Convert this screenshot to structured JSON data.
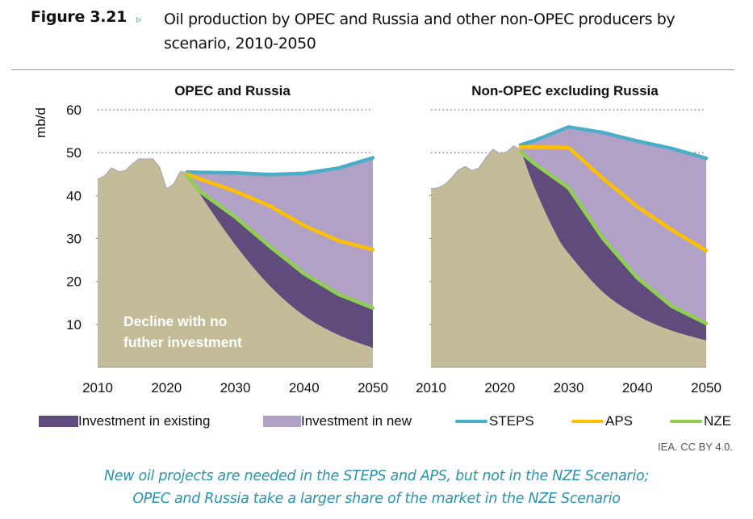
{
  "figure": {
    "label": "Figure 3.21",
    "marker": "▹",
    "title": "Oil production by OPEC and Russia and other non-OPEC producers by scenario, 2010-2050",
    "credit": "IEA. CC BY 4.0.",
    "caption_lines": [
      "New oil projects are needed in the STEPS and APS, but not in the NZE Scenario;",
      "OPEC and Russia take a larger share of the market in the NZE Scenario"
    ]
  },
  "legend": [
    {
      "label": "Investment in existing",
      "kind": "area",
      "color": "#5f4b7c"
    },
    {
      "label": "Investment in new",
      "kind": "area",
      "color": "#b2a1c7"
    },
    {
      "label": "STEPS",
      "kind": "line",
      "color": "#4baec8"
    },
    {
      "label": "APS",
      "kind": "line",
      "color": "#ffc000"
    },
    {
      "label": "NZE",
      "kind": "line",
      "color": "#8fd14f"
    }
  ],
  "colors": {
    "decline": "#c4bc98",
    "existing": "#5f4b7c",
    "new": "#b2a1c7",
    "steps": "#4baec8",
    "aps": "#ffc000",
    "nze": "#8fd14f",
    "grid": "#8c8c8c",
    "annotation": "#ffffff"
  },
  "chart_data": [
    {
      "type": "area",
      "title": "OPEC and Russia",
      "ylabel": "mb/d",
      "xlabel": "",
      "xlim": [
        2010,
        2050
      ],
      "ylim": [
        0,
        60
      ],
      "yticks": [
        10,
        20,
        30,
        40,
        50,
        60
      ],
      "ytick_labels_shown": true,
      "xticks": [
        2010,
        2020,
        2030,
        2040,
        2050
      ],
      "gridlines": [
        50,
        60
      ],
      "annotation": [
        "Decline with no",
        "futher investment"
      ],
      "historical": {
        "x": [
          2010,
          2011,
          2012,
          2013,
          2014,
          2015,
          2016,
          2017,
          2018,
          2019,
          2020,
          2021,
          2022,
          2023
        ],
        "y": [
          43.8,
          44.6,
          46.5,
          45.6,
          45.8,
          47.3,
          48.6,
          48.5,
          48.6,
          46.7,
          41.6,
          42.6,
          45.6,
          45.4
        ]
      },
      "decline_no_investment": {
        "x": [
          2023,
          2025,
          2030,
          2035,
          2040,
          2045,
          2050
        ],
        "y": [
          45.4,
          40.0,
          28.5,
          19.0,
          12.0,
          7.5,
          4.5
        ]
      },
      "series": [
        {
          "name": "STEPS",
          "x": [
            2023,
            2025,
            2030,
            2035,
            2040,
            2045,
            2050
          ],
          "y": [
            45.5,
            45.4,
            45.3,
            44.9,
            45.2,
            46.4,
            48.8
          ]
        },
        {
          "name": "APS",
          "x": [
            2023,
            2025,
            2030,
            2035,
            2040,
            2045,
            2050
          ],
          "y": [
            45.0,
            43.8,
            41.0,
            37.6,
            33.0,
            29.5,
            27.4
          ]
        },
        {
          "name": "NZE",
          "x": [
            2023,
            2025,
            2030,
            2035,
            2040,
            2045,
            2050
          ],
          "y": [
            44.5,
            40.8,
            35.0,
            28.2,
            21.8,
            17.0,
            13.8
          ]
        }
      ]
    },
    {
      "type": "area",
      "title": "Non-OPEC excluding Russia",
      "ylabel": "",
      "xlabel": "",
      "xlim": [
        2010,
        2050
      ],
      "ylim": [
        0,
        60
      ],
      "yticks": [
        10,
        20,
        30,
        40,
        50,
        60
      ],
      "ytick_labels_shown": false,
      "xticks": [
        2010,
        2020,
        2030,
        2040,
        2050
      ],
      "gridlines": [
        50,
        60
      ],
      "historical": {
        "x": [
          2010,
          2011,
          2012,
          2013,
          2014,
          2015,
          2016,
          2017,
          2018,
          2019,
          2020,
          2021,
          2022,
          2023
        ],
        "y": [
          41.6,
          41.8,
          42.6,
          44.1,
          46.0,
          46.8,
          45.8,
          46.5,
          48.9,
          50.8,
          49.8,
          50.2,
          51.6,
          50.8
        ]
      },
      "decline_no_investment": {
        "x": [
          2023,
          2025,
          2028,
          2030,
          2035,
          2040,
          2045,
          2050
        ],
        "y": [
          50.8,
          42.0,
          31.5,
          26.5,
          17.5,
          12.0,
          8.5,
          6.2
        ]
      },
      "series": [
        {
          "name": "STEPS",
          "x": [
            2023,
            2025,
            2030,
            2035,
            2040,
            2045,
            2050
          ],
          "y": [
            51.8,
            52.8,
            56.0,
            54.7,
            52.7,
            51.0,
            48.7
          ]
        },
        {
          "name": "APS",
          "x": [
            2023,
            2025,
            2030,
            2035,
            2040,
            2045,
            2050
          ],
          "y": [
            51.3,
            51.3,
            51.2,
            44.0,
            37.4,
            32.0,
            27.2
          ]
        },
        {
          "name": "NZE",
          "x": [
            2023,
            2025,
            2030,
            2035,
            2040,
            2045,
            2050
          ],
          "y": [
            50.2,
            47.5,
            41.8,
            30.0,
            20.8,
            14.2,
            10.2
          ]
        }
      ]
    }
  ]
}
